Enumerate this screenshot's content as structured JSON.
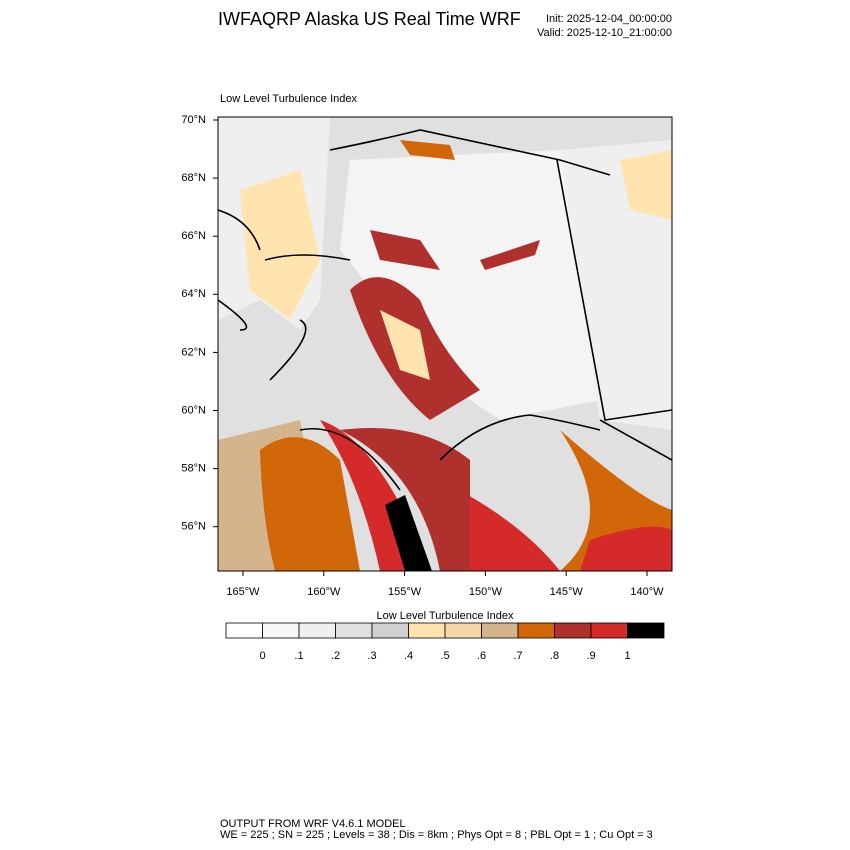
{
  "header": {
    "title": "IWFAQRP Alaska US Real Time WRF",
    "init": "Init: 2025-12-04_00:00:00",
    "valid": "Valid: 2025-12-10_21:00:00"
  },
  "map": {
    "title": "Low Level Turbulence Index",
    "lat_labels": [
      "70°N",
      "68°N",
      "66°N",
      "64°N",
      "62°N",
      "60°N",
      "58°N",
      "56°N"
    ],
    "lon_labels": [
      "165°W",
      "160°W",
      "155°W",
      "150°W",
      "145°W",
      "140°W"
    ]
  },
  "colorbar": {
    "title": "Low Level Turbulence Index",
    "colors": [
      "#ffffff",
      "#f8f8f8",
      "#efefef",
      "#e0e0e0",
      "#d0d0d0",
      "#ffe4b0",
      "#f5d6a8",
      "#d4b48c",
      "#d2670a",
      "#b0302e",
      "#d42a2a",
      "#000000"
    ],
    "labels": [
      "0",
      ".1",
      ".2",
      ".3",
      ".4",
      ".5",
      ".6",
      ".7",
      ".8",
      ".9",
      "1"
    ]
  },
  "footer": {
    "lines": [
      "OUTPUT FROM WRF V4.6.1 MODEL",
      "WE = 225 ; SN = 225 ; Levels = 38 ; Dis = 8km ; Phys Opt = 8 ; PBL Opt = 1 ; Cu Opt = 3"
    ]
  }
}
